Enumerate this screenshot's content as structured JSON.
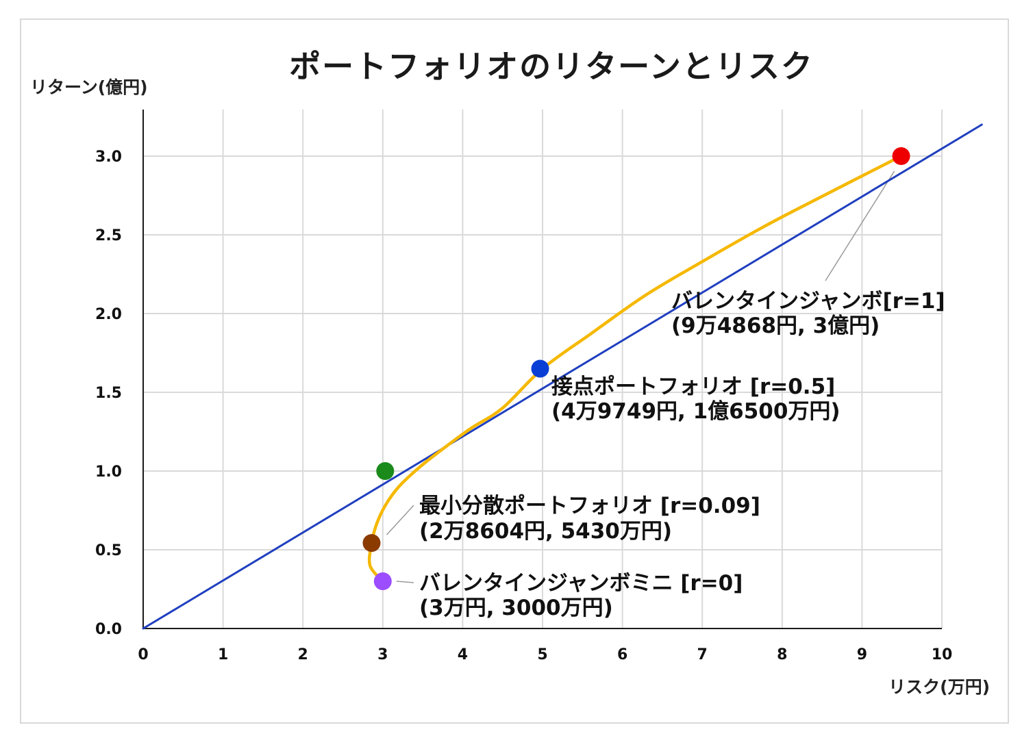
{
  "chart_data": {
    "type": "line",
    "title": "ポートフォリオのリターンとリスク",
    "xlabel": "リスク(万円)",
    "ylabel": "リターン(億円)",
    "xlim": [
      0,
      10
    ],
    "ylim": [
      0,
      3.0
    ],
    "x_ticks": [
      "0",
      "1",
      "2",
      "3",
      "4",
      "5",
      "6",
      "7",
      "8",
      "9",
      "10"
    ],
    "y_ticks": [
      "0.0",
      "0.5",
      "1.0",
      "1.5",
      "2.0",
      "2.5",
      "3.0"
    ],
    "grid": true,
    "legend": "none",
    "series": [
      {
        "color": "#1f3fbf",
        "x": [
          0,
          10.5
        ],
        "y": [
          0,
          3.2
        ]
      },
      {
        "color": "#f5b800",
        "x": [
          3.0,
          2.84,
          2.86,
          2.92,
          3.03,
          3.2,
          3.45,
          3.75,
          4.1,
          4.5,
          5.0,
          5.6,
          6.3,
          7.0,
          7.8,
          8.6,
          9.49
        ],
        "y": [
          0.3,
          0.4,
          0.54,
          0.66,
          0.78,
          0.9,
          1.02,
          1.14,
          1.27,
          1.4,
          1.65,
          1.87,
          2.12,
          2.33,
          2.56,
          2.77,
          3.0
        ]
      }
    ],
    "points": [
      {
        "color": "#9b4dff",
        "x": 3.0,
        "y": 0.3
      },
      {
        "color": "#8b3a00",
        "x": 2.86,
        "y": 0.543
      },
      {
        "color": "#1a8a1a",
        "x": 3.03,
        "y": 1.0
      },
      {
        "color": "#0a3fd6",
        "x": 4.97,
        "y": 1.65
      },
      {
        "color": "#ee0000",
        "x": 9.49,
        "y": 3.0
      }
    ],
    "annotations": [
      {
        "line1": "バレンタインジャンボ[r=1]",
        "line2": "(9万4868円, 3億円)"
      },
      {
        "line1": "接点ポートフォリオ [r=0.5]",
        "line2": "(4万9749円, 1億6500万円)"
      },
      {
        "line1": "最小分散ポートフォリオ [r=0.09]",
        "line2": "(2万8604円, 5430万円)"
      },
      {
        "line1": "バレンタインジャンボミニ [r=0]",
        "line2": "(3万円, 3000万円)"
      }
    ]
  }
}
